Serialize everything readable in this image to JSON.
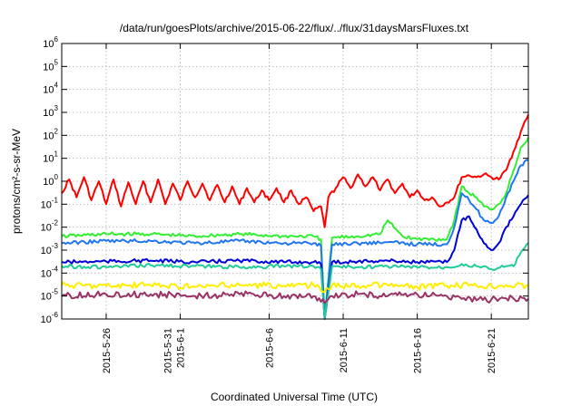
{
  "chart_data": {
    "type": "line",
    "title": "/data/run/goesPlots/archive/2015-06-22/flux/../flux/31daysMarsFluxes.txt",
    "xlabel": "Coordinated Universal Time (UTC)",
    "ylabel": "protons/cm²-s-sr-MeV",
    "y_scale": "log",
    "ylim": [
      1e-06,
      1000000.0
    ],
    "xlim": [
      "2015-05-23",
      "2015-06-23T12:00"
    ],
    "grid": true,
    "legend": "none",
    "y_ticks": [
      {
        "base": "10",
        "exp": "-6"
      },
      {
        "base": "10",
        "exp": "-5"
      },
      {
        "base": "10",
        "exp": "-4"
      },
      {
        "base": "10",
        "exp": "-3"
      },
      {
        "base": "10",
        "exp": "-2"
      },
      {
        "base": "10",
        "exp": "-1"
      },
      {
        "base": "10",
        "exp": "0"
      },
      {
        "base": "10",
        "exp": "1"
      },
      {
        "base": "10",
        "exp": "2"
      },
      {
        "base": "10",
        "exp": "3"
      },
      {
        "base": "10",
        "exp": "4"
      },
      {
        "base": "10",
        "exp": "5"
      },
      {
        "base": "10",
        "exp": "6"
      }
    ],
    "x_ticks": [
      {
        "date": "2015-05-26",
        "lines": [
          "2015-5-26"
        ]
      },
      {
        "date": "2015-05-31",
        "lines": [
          "2015-5-31",
          "2015-6-1"
        ]
      },
      {
        "date": "2015-06-06",
        "lines": [
          "2015-6-6"
        ]
      },
      {
        "date": "2015-06-11",
        "lines": [
          "2015-6-11"
        ]
      },
      {
        "date": "2015-06-16",
        "lines": [
          "2015-6-16"
        ]
      },
      {
        "date": "2015-06-21",
        "lines": [
          "2015-6-21"
        ]
      }
    ],
    "series": [
      {
        "color": "#ff0000",
        "points": [
          [
            "2015-05-23",
            0.3
          ],
          [
            "2015-05-23T12:00",
            1.2
          ],
          [
            "2015-05-24",
            0.2
          ],
          [
            "2015-05-24T12:00",
            1.5
          ],
          [
            "2015-05-25",
            0.15
          ],
          [
            "2015-05-25T12:00",
            1.0
          ],
          [
            "2015-05-26",
            0.1
          ],
          [
            "2015-05-26T12:00",
            1.2
          ],
          [
            "2015-05-27",
            0.08
          ],
          [
            "2015-05-27T12:00",
            0.9
          ],
          [
            "2015-05-28",
            0.1
          ],
          [
            "2015-05-28T12:00",
            1.0
          ],
          [
            "2015-05-29",
            0.12
          ],
          [
            "2015-05-29T12:00",
            1.2
          ],
          [
            "2015-05-30",
            0.1
          ],
          [
            "2015-05-30T12:00",
            0.8
          ],
          [
            "2015-05-31",
            0.15
          ],
          [
            "2015-05-31T12:00",
            1.0
          ],
          [
            "2015-06-01",
            0.2
          ],
          [
            "2015-06-01T12:00",
            0.8
          ],
          [
            "2015-06-02",
            0.15
          ],
          [
            "2015-06-02T12:00",
            0.7
          ],
          [
            "2015-06-03",
            0.12
          ],
          [
            "2015-06-03T12:00",
            0.6
          ],
          [
            "2015-06-04",
            0.1
          ],
          [
            "2015-06-04T12:00",
            0.5
          ],
          [
            "2015-06-05",
            0.12
          ],
          [
            "2015-06-05T12:00",
            0.4
          ],
          [
            "2015-06-06",
            0.15
          ],
          [
            "2015-06-06T12:00",
            0.5
          ],
          [
            "2015-06-07",
            0.12
          ],
          [
            "2015-06-07T12:00",
            0.4
          ],
          [
            "2015-06-08",
            0.1
          ],
          [
            "2015-06-08T12:00",
            0.2
          ],
          [
            "2015-06-09",
            0.05
          ],
          [
            "2015-06-09T12:00",
            0.08
          ],
          [
            "2015-06-09T18:00",
            0.01
          ],
          [
            "2015-06-10",
            0.2
          ],
          [
            "2015-06-10T12:00",
            0.5
          ],
          [
            "2015-06-11",
            1.5
          ],
          [
            "2015-06-11T12:00",
            0.5
          ],
          [
            "2015-06-12",
            2.0
          ],
          [
            "2015-06-12T12:00",
            0.6
          ],
          [
            "2015-06-13",
            1.5
          ],
          [
            "2015-06-13T12:00",
            0.4
          ],
          [
            "2015-06-14",
            1.2
          ],
          [
            "2015-06-14T12:00",
            0.3
          ],
          [
            "2015-06-15",
            0.8
          ],
          [
            "2015-06-15T12:00",
            0.2
          ],
          [
            "2015-06-16",
            0.4
          ],
          [
            "2015-06-16T12:00",
            0.15
          ],
          [
            "2015-06-17",
            0.2
          ],
          [
            "2015-06-17T12:00",
            0.08
          ],
          [
            "2015-06-18",
            0.12
          ],
          [
            "2015-06-18T12:00",
            0.2
          ],
          [
            "2015-06-19",
            1.5
          ],
          [
            "2015-06-19T12:00",
            1.8
          ],
          [
            "2015-06-20",
            1.5
          ],
          [
            "2015-06-20T12:00",
            2.0
          ],
          [
            "2015-06-21",
            1.5
          ],
          [
            "2015-06-21T12:00",
            1.2
          ],
          [
            "2015-06-22",
            3.0
          ],
          [
            "2015-06-22T12:00",
            20
          ],
          [
            "2015-06-23",
            150
          ],
          [
            "2015-06-23T12:00",
            800
          ]
        ]
      },
      {
        "color": "#33ee33",
        "points": [
          [
            "2015-05-23",
            0.004
          ],
          [
            "2015-05-26",
            0.005
          ],
          [
            "2015-05-29",
            0.005
          ],
          [
            "2015-06-01",
            0.004
          ],
          [
            "2015-06-04",
            0.005
          ],
          [
            "2015-06-07",
            0.004
          ],
          [
            "2015-06-09",
            0.004
          ],
          [
            "2015-06-09T12:00",
            0.003
          ],
          [
            "2015-06-09T18:00",
            1e-06
          ],
          [
            "2015-06-10T06:00",
            0.0035
          ],
          [
            "2015-06-12",
            0.004
          ],
          [
            "2015-06-13T12:00",
            0.005
          ],
          [
            "2015-06-14",
            0.02
          ],
          [
            "2015-06-15",
            0.004
          ],
          [
            "2015-06-16",
            0.003
          ],
          [
            "2015-06-18",
            0.003
          ],
          [
            "2015-06-18T12:00",
            0.02
          ],
          [
            "2015-06-19",
            0.6
          ],
          [
            "2015-06-19T12:00",
            0.3
          ],
          [
            "2015-06-20",
            0.2
          ],
          [
            "2015-06-20T12:00",
            0.08
          ],
          [
            "2015-06-21",
            0.06
          ],
          [
            "2015-06-21T12:00",
            0.1
          ],
          [
            "2015-06-22",
            0.3
          ],
          [
            "2015-06-22T12:00",
            3.0
          ],
          [
            "2015-06-23",
            30
          ],
          [
            "2015-06-23T12:00",
            80
          ]
        ]
      },
      {
        "color": "#2277ee",
        "points": [
          [
            "2015-05-23",
            0.002
          ],
          [
            "2015-05-26",
            0.0025
          ],
          [
            "2015-05-29",
            0.0025
          ],
          [
            "2015-06-01",
            0.002
          ],
          [
            "2015-06-04",
            0.0025
          ],
          [
            "2015-06-07",
            0.002
          ],
          [
            "2015-06-09",
            0.002
          ],
          [
            "2015-06-09T12:00",
            0.0015
          ],
          [
            "2015-06-09T18:00",
            1e-06
          ],
          [
            "2015-06-10T06:00",
            0.0018
          ],
          [
            "2015-06-12",
            0.002
          ],
          [
            "2015-06-14",
            0.0022
          ],
          [
            "2015-06-16",
            0.0018
          ],
          [
            "2015-06-18",
            0.0018
          ],
          [
            "2015-06-18T12:00",
            0.01
          ],
          [
            "2015-06-19",
            0.3
          ],
          [
            "2015-06-19T12:00",
            0.15
          ],
          [
            "2015-06-20",
            0.06
          ],
          [
            "2015-06-20T12:00",
            0.02
          ],
          [
            "2015-06-21",
            0.015
          ],
          [
            "2015-06-21T12:00",
            0.03
          ],
          [
            "2015-06-22",
            0.2
          ],
          [
            "2015-06-22T12:00",
            1.0
          ],
          [
            "2015-06-23",
            5.0
          ],
          [
            "2015-06-23T12:00",
            8.0
          ]
        ]
      },
      {
        "color": "#0000dd",
        "points": [
          [
            "2015-05-23",
            0.0003
          ],
          [
            "2015-05-26",
            0.00032
          ],
          [
            "2015-05-29",
            0.00035
          ],
          [
            "2015-06-01",
            0.0003
          ],
          [
            "2015-06-04",
            0.00035
          ],
          [
            "2015-06-07",
            0.0003
          ],
          [
            "2015-06-09",
            0.0003
          ],
          [
            "2015-06-09T12:00",
            0.00025
          ],
          [
            "2015-06-09T18:00",
            1e-06
          ],
          [
            "2015-06-10T06:00",
            0.0003
          ],
          [
            "2015-06-12",
            0.00032
          ],
          [
            "2015-06-14",
            0.00035
          ],
          [
            "2015-06-16",
            0.0003
          ],
          [
            "2015-06-18",
            0.0003
          ],
          [
            "2015-06-18T12:00",
            0.001
          ],
          [
            "2015-06-19",
            0.02
          ],
          [
            "2015-06-19T12:00",
            0.03
          ],
          [
            "2015-06-20",
            0.008
          ],
          [
            "2015-06-20T12:00",
            0.002
          ],
          [
            "2015-06-21",
            0.001
          ],
          [
            "2015-06-21T12:00",
            0.002
          ],
          [
            "2015-06-22",
            0.01
          ],
          [
            "2015-06-22T12:00",
            0.03
          ],
          [
            "2015-06-23",
            0.1
          ],
          [
            "2015-06-23T12:00",
            0.25
          ]
        ]
      },
      {
        "color": "#22cc99",
        "points": [
          [
            "2015-05-23",
            0.0002
          ],
          [
            "2015-05-26",
            0.00018
          ],
          [
            "2015-05-29",
            0.00022
          ],
          [
            "2015-06-01",
            0.0002
          ],
          [
            "2015-06-04",
            0.00018
          ],
          [
            "2015-06-07",
            0.0002
          ],
          [
            "2015-06-09",
            0.0002
          ],
          [
            "2015-06-09T12:00",
            0.00015
          ],
          [
            "2015-06-09T18:00",
            1e-06
          ],
          [
            "2015-06-10T06:00",
            0.0002
          ],
          [
            "2015-06-12",
            0.00018
          ],
          [
            "2015-06-14",
            0.0002
          ],
          [
            "2015-06-16",
            0.00018
          ],
          [
            "2015-06-18",
            0.00018
          ],
          [
            "2015-06-19",
            0.00025
          ],
          [
            "2015-06-20",
            0.0002
          ],
          [
            "2015-06-21",
            0.00015
          ],
          [
            "2015-06-22",
            0.0002
          ],
          [
            "2015-06-22T12:00",
            0.0002
          ],
          [
            "2015-06-23",
            0.0008
          ],
          [
            "2015-06-23T12:00",
            0.002
          ]
        ]
      },
      {
        "color": "#ffee00",
        "points": [
          [
            "2015-05-23",
            3e-05
          ],
          [
            "2015-05-26",
            2.8e-05
          ],
          [
            "2015-05-29",
            3e-05
          ],
          [
            "2015-06-01",
            2.5e-05
          ],
          [
            "2015-06-04",
            3e-05
          ],
          [
            "2015-06-07",
            2.8e-05
          ],
          [
            "2015-06-09",
            3e-05
          ],
          [
            "2015-06-09T18:00",
            1.5e-05
          ],
          [
            "2015-06-10T06:00",
            3e-05
          ],
          [
            "2015-06-12",
            2.8e-05
          ],
          [
            "2015-06-14",
            3e-05
          ],
          [
            "2015-06-16",
            2.5e-05
          ],
          [
            "2015-06-18",
            2.8e-05
          ],
          [
            "2015-06-20",
            2.8e-05
          ],
          [
            "2015-06-22",
            3e-05
          ],
          [
            "2015-06-23T12:00",
            2.8e-05
          ]
        ]
      },
      {
        "color": "#993366",
        "points": [
          [
            "2015-05-23",
            1e-05
          ],
          [
            "2015-05-26",
            1.2e-05
          ],
          [
            "2015-05-29",
            1.2e-05
          ],
          [
            "2015-06-01",
            1e-05
          ],
          [
            "2015-06-04",
            1.2e-05
          ],
          [
            "2015-06-07",
            1e-05
          ],
          [
            "2015-06-09",
            1e-05
          ],
          [
            "2015-06-09T18:00",
            5e-06
          ],
          [
            "2015-06-10T06:00",
            1e-05
          ],
          [
            "2015-06-12",
            1.2e-05
          ],
          [
            "2015-06-14",
            1e-05
          ],
          [
            "2015-06-16",
            1.2e-05
          ],
          [
            "2015-06-18",
            1e-05
          ],
          [
            "2015-06-19",
            7.5e-06
          ],
          [
            "2015-06-20",
            6.5e-06
          ],
          [
            "2015-06-21",
            7e-06
          ],
          [
            "2015-06-22",
            8e-06
          ],
          [
            "2015-06-23T12:00",
            7.5e-06
          ]
        ]
      }
    ]
  }
}
